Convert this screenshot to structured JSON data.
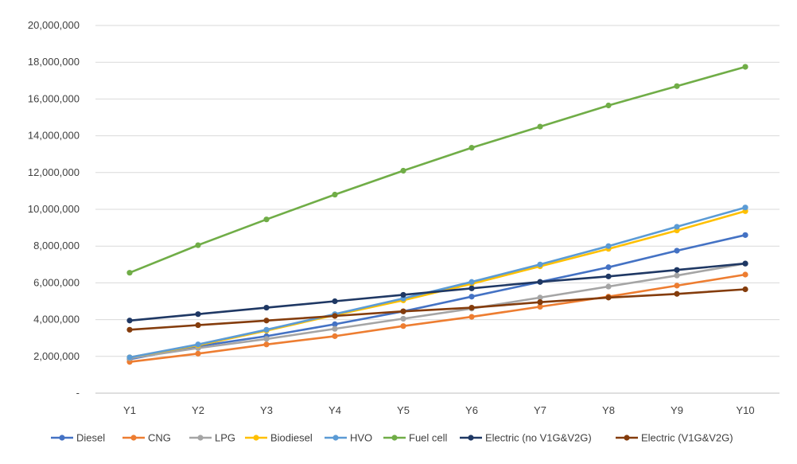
{
  "chart_data": {
    "type": "line",
    "title": "",
    "xlabel": "",
    "ylabel": "",
    "categories": [
      "Y1",
      "Y2",
      "Y3",
      "Y4",
      "Y5",
      "Y6",
      "Y7",
      "Y8",
      "Y9",
      "Y10"
    ],
    "ylim": [
      0,
      20000000
    ],
    "ytick_values": [
      0,
      2000000,
      4000000,
      6000000,
      8000000,
      10000000,
      12000000,
      14000000,
      16000000,
      18000000,
      20000000
    ],
    "ytick_labels": [
      "-",
      "2,000,000",
      "4,000,000",
      "6,000,000",
      "8,000,000",
      "10,000,000",
      "12,000,000",
      "14,000,000",
      "16,000,000",
      "18,000,000",
      "20,000,000"
    ],
    "grid": true,
    "legend_position": "bottom",
    "series": [
      {
        "name": "Diesel",
        "color": "#4472C4",
        "values": [
          1850000,
          2550000,
          3100000,
          3750000,
          4450000,
          5250000,
          6050000,
          6850000,
          7750000,
          8600000
        ]
      },
      {
        "name": "CNG",
        "color": "#ED7D31",
        "values": [
          1700000,
          2150000,
          2650000,
          3100000,
          3650000,
          4150000,
          4700000,
          5250000,
          5850000,
          6450000
        ]
      },
      {
        "name": "LPG",
        "color": "#A5A5A5",
        "values": [
          1900000,
          2450000,
          2950000,
          3500000,
          4050000,
          4600000,
          5200000,
          5800000,
          6400000,
          7050000
        ]
      },
      {
        "name": "Biodiesel",
        "color": "#FFC000",
        "values": [
          1950000,
          2600000,
          3400000,
          4250000,
          5050000,
          5950000,
          6900000,
          7850000,
          8850000,
          9900000
        ]
      },
      {
        "name": "HVO",
        "color": "#5B9BD5",
        "values": [
          1950000,
          2650000,
          3450000,
          4300000,
          5150000,
          6050000,
          7000000,
          8000000,
          9050000,
          10100000
        ]
      },
      {
        "name": "Fuel cell",
        "color": "#70AD47",
        "values": [
          6550000,
          8050000,
          9450000,
          10800000,
          12100000,
          13350000,
          14500000,
          15650000,
          16700000,
          17750000
        ]
      },
      {
        "name": "Electric (no V1G&V2G)",
        "color": "#1F3864",
        "values": [
          3950000,
          4300000,
          4650000,
          5000000,
          5350000,
          5700000,
          6050000,
          6350000,
          6700000,
          7050000
        ]
      },
      {
        "name": "Electric (V1G&V2G)",
        "color": "#843C0C",
        "values": [
          3450000,
          3700000,
          3950000,
          4200000,
          4450000,
          4650000,
          4950000,
          5200000,
          5400000,
          5650000
        ]
      }
    ]
  }
}
